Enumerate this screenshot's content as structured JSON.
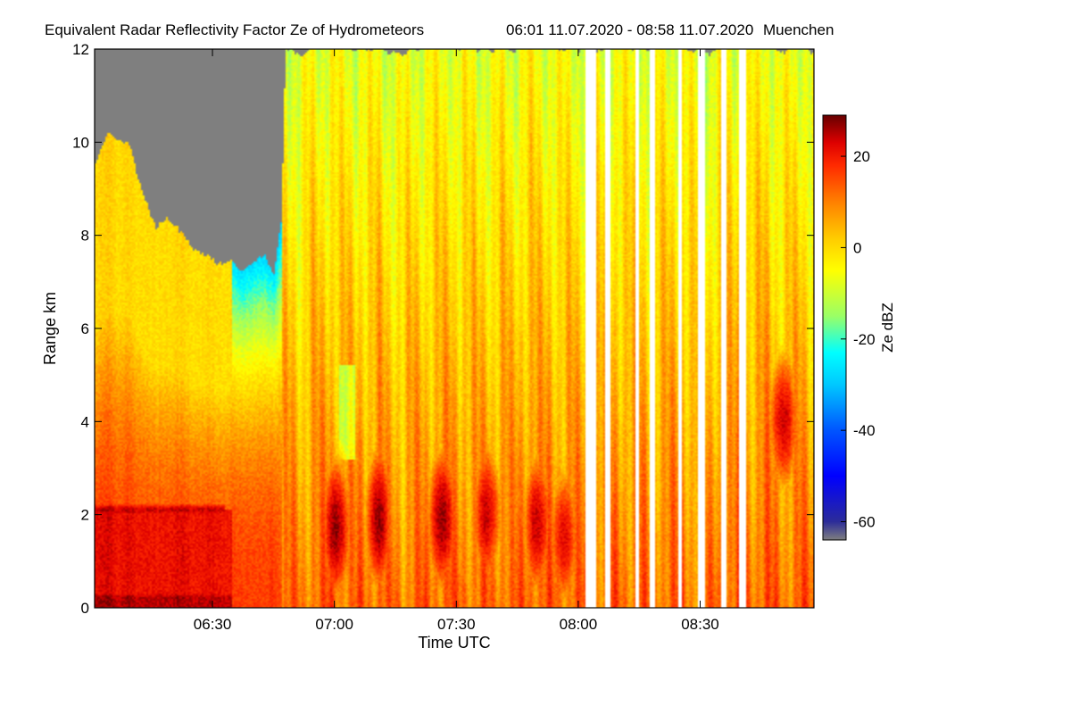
{
  "chart_data": {
    "type": "heatmap",
    "title": "Equivalent Radar Reflectivity Factor Ze of Hydrometeors",
    "time_range_text": "06:01 11.07.2020 - 08:58 11.07.2020",
    "location": "Muenchen",
    "xlabel": "Time UTC",
    "ylabel": "Range km",
    "colorbar_label": "Ze dBZ",
    "x_range_minutes_utc": [
      361,
      538
    ],
    "y_range_km": [
      0,
      12
    ],
    "z_range_dbz": [
      -64,
      29
    ],
    "x_ticks": [
      {
        "minute": 390,
        "label": "06:30"
      },
      {
        "minute": 420,
        "label": "07:00"
      },
      {
        "minute": 450,
        "label": "07:30"
      },
      {
        "minute": 480,
        "label": "08:00"
      },
      {
        "minute": 510,
        "label": "08:30"
      }
    ],
    "y_ticks": [
      {
        "value": 0,
        "label": "0"
      },
      {
        "value": 2,
        "label": "2"
      },
      {
        "value": 4,
        "label": "4"
      },
      {
        "value": 6,
        "label": "6"
      },
      {
        "value": 8,
        "label": "8"
      },
      {
        "value": 10,
        "label": "10"
      },
      {
        "value": 12,
        "label": "12"
      }
    ],
    "colorbar_ticks": [
      {
        "value": 20,
        "label": "20"
      },
      {
        "value": 0,
        "label": "0"
      },
      {
        "value": -20,
        "label": "-20"
      },
      {
        "value": -40,
        "label": "-40"
      },
      {
        "value": -60,
        "label": "-60"
      }
    ],
    "colormap": [
      {
        "value": -64,
        "color": "#7f7f7f"
      },
      {
        "value": -60,
        "color": "#2c2c99"
      },
      {
        "value": -50,
        "color": "#0000ff"
      },
      {
        "value": -40,
        "color": "#0055ff"
      },
      {
        "value": -30,
        "color": "#00c8ff"
      },
      {
        "value": -23,
        "color": "#00ffff"
      },
      {
        "value": -15,
        "color": "#9aff66"
      },
      {
        "value": -5,
        "color": "#ffff00"
      },
      {
        "value": 2,
        "color": "#ffcc00"
      },
      {
        "value": 10,
        "color": "#ff8000"
      },
      {
        "value": 18,
        "color": "#ff2a00"
      },
      {
        "value": 23,
        "color": "#dd0000"
      },
      {
        "value": 29,
        "color": "#660000"
      }
    ],
    "no_signal_color": "#7f7f7f",
    "data_gaps_minutes": [
      [
        481.6,
        484.3
      ],
      [
        486.8,
        488.1
      ],
      [
        494.0,
        495.1
      ],
      [
        497.5,
        498.8
      ],
      [
        504.5,
        505.6
      ],
      [
        509.6,
        511.0
      ],
      [
        515.0,
        516.3
      ],
      [
        519.7,
        521.1
      ]
    ],
    "echo_top_km": [
      [
        361,
        9.5
      ],
      [
        364,
        10.0
      ],
      [
        367,
        10.1
      ],
      [
        370,
        9.8
      ],
      [
        373,
        8.9
      ],
      [
        376,
        8.2
      ],
      [
        379,
        8.4
      ],
      [
        382,
        8.0
      ],
      [
        385,
        7.8
      ],
      [
        388,
        7.6
      ],
      [
        391,
        7.4
      ],
      [
        394,
        7.5
      ],
      [
        397,
        7.2
      ],
      [
        400,
        7.4
      ],
      [
        403,
        7.6
      ],
      [
        405,
        7.0
      ],
      [
        407,
        8.5
      ],
      [
        408,
        12.0
      ],
      [
        538,
        12.0
      ]
    ],
    "cells": [
      {
        "minute": 420.5,
        "height_km": 1.7,
        "dbz": 26
      },
      {
        "minute": 431.0,
        "height_km": 1.9,
        "dbz": 26
      },
      {
        "minute": 446.5,
        "height_km": 1.9,
        "dbz": 26
      },
      {
        "minute": 457.5,
        "height_km": 2.0,
        "dbz": 24
      },
      {
        "minute": 470.0,
        "height_km": 1.8,
        "dbz": 23
      },
      {
        "minute": 476.5,
        "height_km": 1.5,
        "dbz": 22
      },
      {
        "minute": 530.5,
        "height_km": 4.0,
        "dbz": 24
      }
    ],
    "layers": [
      {
        "from_minute": 361,
        "to_minute": 393,
        "height_km": 2.1,
        "dbz": 24,
        "name": "melting-layer-bright-band"
      },
      {
        "from_minute": 361,
        "to_minute": 395,
        "height_km": 0.2,
        "dbz": 25,
        "name": "near-surface-rain"
      }
    ]
  }
}
